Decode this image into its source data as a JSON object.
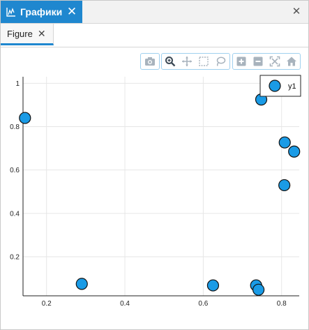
{
  "window": {
    "tab_title": "Графики",
    "tab_icon": "chart-icon",
    "tab_close_icon": "close-icon",
    "window_close_icon": "close-icon",
    "accent": "#1f87cf"
  },
  "figure_tab": {
    "label": "Figure",
    "close_icon": "close-icon"
  },
  "toolbar": {
    "groups": [
      [
        "camera-icon"
      ],
      [
        "zoom-icon",
        "pan-icon",
        "box-select-icon",
        "lasso-icon"
      ],
      [
        "zoom-in-icon",
        "zoom-out-icon",
        "autoscale-icon",
        "home-icon"
      ]
    ]
  },
  "chart_data": {
    "type": "scatter",
    "xlim": [
      0.14,
      0.845
    ],
    "ylim": [
      0.02,
      1.03
    ],
    "xticks": [
      "0.2",
      "0.4",
      "0.6",
      "0.8"
    ],
    "xtick_values": [
      0.2,
      0.4,
      0.6,
      0.8
    ],
    "yticks": [
      "0.2",
      "0.4",
      "0.6",
      "0.8",
      "1"
    ],
    "ytick_values": [
      0.2,
      0.4,
      0.6,
      0.8,
      1.0
    ],
    "grid": true,
    "legend_placement": "top-right",
    "marker_color": "#1a9be6",
    "series": [
      {
        "name": "y1",
        "points": [
          {
            "x": 0.145,
            "y": 0.84
          },
          {
            "x": 0.29,
            "y": 0.075
          },
          {
            "x": 0.625,
            "y": 0.068
          },
          {
            "x": 0.735,
            "y": 0.068
          },
          {
            "x": 0.741,
            "y": 0.048
          },
          {
            "x": 0.748,
            "y": 0.925
          },
          {
            "x": 0.808,
            "y": 0.727
          },
          {
            "x": 0.832,
            "y": 0.685
          },
          {
            "x": 0.807,
            "y": 0.53
          }
        ]
      }
    ]
  }
}
